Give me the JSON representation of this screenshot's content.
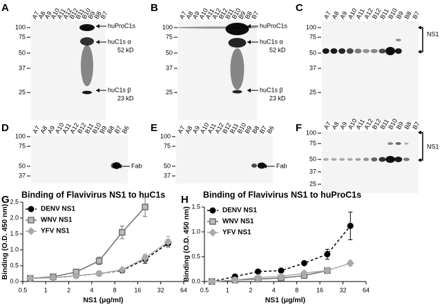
{
  "panels": [
    {
      "letter": "A",
      "lanes": [
        "A7",
        "A8",
        "A9",
        "A10",
        "A11",
        "A12",
        "B12",
        "B11",
        "B10",
        "B9",
        "B8",
        "B7"
      ],
      "markers": [
        100,
        75,
        50,
        37,
        25
      ],
      "annotations": [
        "huProC1s",
        "huC1s α",
        "52 kD",
        "huC1s β",
        "23 kD"
      ]
    },
    {
      "letter": "B",
      "lanes": [
        "A7",
        "A8",
        "A9",
        "A10",
        "A11",
        "A12",
        "B12",
        "B11",
        "B10",
        "B9",
        "B8",
        "B7"
      ],
      "markers": [
        100,
        75,
        50,
        37,
        25
      ],
      "annotations": [
        "huProC1s",
        "huC1s α",
        "52 kD",
        "huC1s β",
        "23 kD"
      ]
    },
    {
      "letter": "C",
      "lanes": [
        "A7",
        "A8",
        "A9",
        "A10",
        "A11",
        "A12",
        "B12",
        "B11",
        "B10",
        "B9",
        "B8",
        "B7"
      ],
      "markers": [
        100,
        75,
        50,
        37,
        25
      ],
      "annotations": [
        "NS1"
      ]
    },
    {
      "letter": "D",
      "lanes": [
        "A7",
        "A8",
        "A9",
        "A10",
        "A11",
        "A12",
        "B12",
        "B11",
        "B10",
        "B9",
        "B8",
        "B7",
        "B6"
      ],
      "markers": [
        100,
        75,
        50,
        37
      ],
      "annotations": [
        "Fab"
      ]
    },
    {
      "letter": "E",
      "lanes": [
        "A7",
        "A8",
        "A9",
        "A10",
        "A11",
        "A12",
        "B12",
        "B11",
        "B10",
        "B9",
        "B8",
        "B7",
        "B6"
      ],
      "markers": [
        100,
        75,
        50,
        37
      ],
      "annotations": [
        "Fab"
      ]
    },
    {
      "letter": "F",
      "lanes": [
        "A7",
        "A8",
        "A9",
        "A10",
        "A11",
        "A12",
        "B12",
        "B11",
        "B10",
        "B9",
        "B8",
        "B7"
      ],
      "markers": [
        100,
        75,
        50,
        37,
        25
      ],
      "annotations": [
        "NS1"
      ]
    }
  ],
  "chart_data": [
    {
      "type": "line",
      "letter": "G",
      "title": "Binding of Flavivirus NS1 to huC1s",
      "x_label": "NS1 (μg/ml)",
      "y_label": "Binding (O.D. 450 nm)",
      "x": [
        0.625,
        1.25,
        2.5,
        5,
        10,
        20,
        40
      ],
      "xlim": [
        0.5,
        64
      ],
      "xticks": [
        0.5,
        1,
        2,
        4,
        8,
        16,
        32,
        64
      ],
      "x_log_base": 2,
      "ylim": [
        0,
        2.5
      ],
      "yticks": [
        {
          "value": 0,
          "label": "0.0"
        },
        0.5,
        {
          "value": 1,
          "label": "1.0"
        },
        1.5,
        {
          "value": 2,
          "label": "2.0"
        },
        2.5
      ],
      "series": [
        {
          "name": "DENV NS1",
          "color": "#000000",
          "marker": "circle",
          "dashed": true,
          "values": [
            0.1,
            0.12,
            0.18,
            0.25,
            0.35,
            0.7,
            1.2
          ],
          "errors": [
            0.02,
            0.03,
            0.03,
            0.04,
            0.05,
            0.12,
            0.12
          ]
        },
        {
          "name": "WNV NS1",
          "color": "#6e6e6e",
          "marker": "square",
          "dashed": false,
          "values": [
            0.1,
            0.15,
            0.3,
            0.65,
            1.55,
            2.35,
            null
          ],
          "errors": [
            0.02,
            0.05,
            0.08,
            0.12,
            0.2,
            0.3,
            null
          ]
        },
        {
          "name": "YFV NS1",
          "color": "#aaaaaa",
          "marker": "diamond",
          "dashed": false,
          "values": [
            0.1,
            0.12,
            0.18,
            0.25,
            0.37,
            0.75,
            1.25
          ],
          "errors": [
            0.02,
            0.03,
            0.03,
            0.04,
            0.05,
            0.12,
            0.18
          ]
        }
      ]
    },
    {
      "type": "line",
      "letter": "H",
      "title": "Binding of Flavivirus NS1 to huProC1s",
      "x_label": "NS1 (μg/ml)",
      "y_label": "Binding (O.D. 450 nm)",
      "x": [
        0.625,
        1.25,
        2.5,
        5,
        10,
        20,
        40
      ],
      "xlim": [
        0.5,
        64
      ],
      "xticks": [
        0.5,
        1,
        2,
        4,
        8,
        16,
        32,
        64
      ],
      "x_log_base": 2,
      "ylim": [
        0,
        1.5
      ],
      "yticks": [
        {
          "value": 0,
          "label": "0.0"
        },
        0.5,
        {
          "value": 1,
          "label": "1.0"
        },
        1.5
      ],
      "series": [
        {
          "name": "DENV NS1",
          "color": "#000000",
          "marker": "circle",
          "dashed": true,
          "values": [
            0,
            0.1,
            0.2,
            0.22,
            0.37,
            0.55,
            1.12
          ],
          "errors": [
            0.01,
            0.02,
            0.03,
            0.02,
            0.02,
            0.1,
            0.28
          ]
        },
        {
          "name": "WNV NS1",
          "color": "#6e6e6e",
          "marker": "square",
          "dashed": false,
          "values": [
            0,
            0.03,
            0.05,
            0.07,
            0.12,
            0.22,
            null
          ],
          "errors": [
            0.01,
            0.02,
            0.02,
            0.02,
            0.03,
            0.05,
            null
          ]
        },
        {
          "name": "YFV NS1",
          "color": "#aaaaaa",
          "marker": "diamond",
          "dashed": false,
          "values": [
            0,
            0.03,
            0.08,
            0.1,
            0.17,
            0.22,
            0.37
          ],
          "errors": [
            0.01,
            0.02,
            0.02,
            0.02,
            0.04,
            0.05,
            0.06
          ]
        }
      ]
    }
  ]
}
